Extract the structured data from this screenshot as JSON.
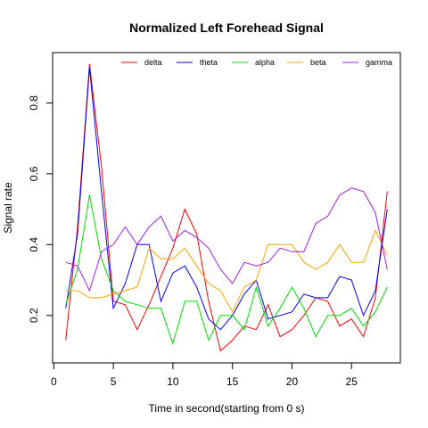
{
  "chart_data": {
    "type": "line",
    "title": "Normalized Left Forehead Signal",
    "xlabel": "Time in second(starting from 0 s)",
    "ylabel": "Signal rate",
    "xlim": [
      -0.1,
      29.1
    ],
    "ylim": [
      0.066,
      0.942
    ],
    "x_ticks": [
      0,
      5,
      10,
      15,
      20,
      25
    ],
    "y_ticks": [
      0.2,
      0.4,
      0.6,
      0.8
    ],
    "legend_position": "top",
    "grid": false,
    "x": [
      1,
      2,
      3,
      4,
      5,
      6,
      7,
      8,
      9,
      10,
      11,
      12,
      13,
      14,
      15,
      16,
      17,
      18,
      19,
      20,
      21,
      22,
      23,
      24,
      25,
      26,
      27,
      28
    ],
    "series": [
      {
        "name": "delta",
        "color": "#ff0000",
        "values": [
          0.13,
          0.45,
          0.91,
          0.62,
          0.24,
          0.23,
          0.16,
          0.23,
          0.31,
          0.39,
          0.5,
          0.43,
          0.24,
          0.1,
          0.13,
          0.17,
          0.16,
          0.23,
          0.14,
          0.16,
          0.2,
          0.25,
          0.24,
          0.17,
          0.19,
          0.14,
          0.25,
          0.55
        ]
      },
      {
        "name": "theta",
        "color": "#0000ff",
        "values": [
          0.22,
          0.43,
          0.9,
          0.55,
          0.22,
          0.29,
          0.4,
          0.4,
          0.24,
          0.32,
          0.34,
          0.28,
          0.19,
          0.16,
          0.2,
          0.26,
          0.3,
          0.19,
          0.2,
          0.21,
          0.26,
          0.25,
          0.25,
          0.31,
          0.3,
          0.2,
          0.27,
          0.5
        ]
      },
      {
        "name": "alpha",
        "color": "#00dd00",
        "values": [
          0.23,
          0.33,
          0.54,
          0.36,
          0.27,
          0.24,
          0.23,
          0.22,
          0.22,
          0.12,
          0.24,
          0.24,
          0.13,
          0.2,
          0.2,
          0.16,
          0.28,
          0.17,
          0.22,
          0.28,
          0.22,
          0.14,
          0.2,
          0.2,
          0.22,
          0.17,
          0.21,
          0.28
        ]
      },
      {
        "name": "beta",
        "color": "#ffa500",
        "values": [
          0.27,
          0.27,
          0.25,
          0.25,
          0.26,
          0.27,
          0.28,
          0.39,
          0.36,
          0.36,
          0.39,
          0.34,
          0.29,
          0.27,
          0.21,
          0.28,
          0.3,
          0.4,
          0.4,
          0.4,
          0.35,
          0.33,
          0.35,
          0.4,
          0.35,
          0.35,
          0.44,
          0.37
        ]
      },
      {
        "name": "gamma",
        "color": "#a020f0",
        "values": [
          0.35,
          0.34,
          0.27,
          0.38,
          0.4,
          0.45,
          0.4,
          0.45,
          0.48,
          0.41,
          0.44,
          0.42,
          0.39,
          0.33,
          0.29,
          0.35,
          0.34,
          0.35,
          0.39,
          0.38,
          0.38,
          0.46,
          0.48,
          0.54,
          0.56,
          0.55,
          0.49,
          0.33
        ]
      }
    ]
  }
}
